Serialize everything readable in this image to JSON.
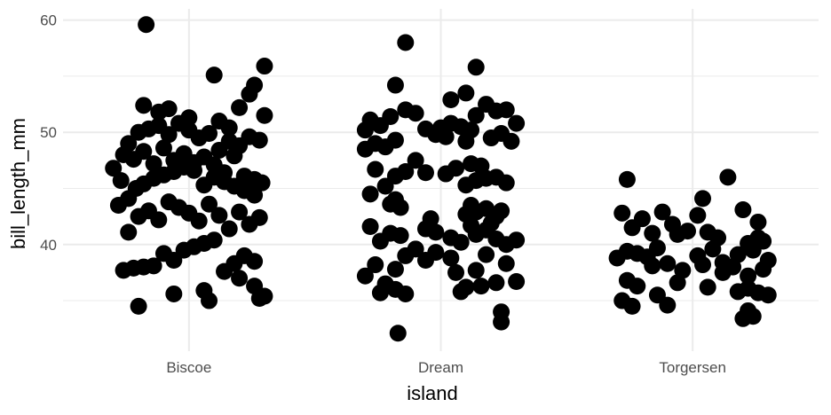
{
  "chart_data": {
    "type": "scatter",
    "title": "",
    "xlabel": "island",
    "ylabel": "bill_length_mm",
    "categories": [
      "Biscoe",
      "Dream",
      "Torgersen"
    ],
    "ylim": [
      30.5,
      61
    ],
    "yticks": [
      40,
      50,
      60
    ],
    "grid": true,
    "legend": "none",
    "point_color": "#000000",
    "grid_color": "#ebebeb",
    "series": [
      {
        "category": "Biscoe",
        "points": [
          [
            -0.3,
            46.8
          ],
          [
            -0.27,
            45.7
          ],
          [
            -0.24,
            49.0
          ],
          [
            -0.2,
            50.0
          ],
          [
            -0.16,
            50.3
          ],
          [
            -0.12,
            50.6
          ],
          [
            -0.08,
            49.8
          ],
          [
            -0.04,
            50.8
          ],
          [
            0.0,
            50.2
          ],
          [
            0.04,
            49.5
          ],
          [
            0.08,
            49.9
          ],
          [
            0.12,
            48.4
          ],
          [
            0.16,
            49.2
          ],
          [
            0.2,
            48.8
          ],
          [
            0.24,
            49.6
          ],
          [
            0.28,
            49.3
          ],
          [
            -0.28,
            43.5
          ],
          [
            -0.24,
            44.1
          ],
          [
            -0.21,
            45.0
          ],
          [
            -0.18,
            45.4
          ],
          [
            -0.14,
            45.9
          ],
          [
            -0.1,
            46.2
          ],
          [
            -0.06,
            46.5
          ],
          [
            -0.02,
            46.9
          ],
          [
            0.02,
            47.3
          ],
          [
            0.06,
            47.8
          ],
          [
            0.1,
            46.0
          ],
          [
            0.14,
            45.6
          ],
          [
            0.18,
            45.2
          ],
          [
            0.22,
            44.8
          ],
          [
            0.26,
            44.4
          ],
          [
            0.29,
            45.5
          ],
          [
            -0.26,
            48.0
          ],
          [
            -0.22,
            47.6
          ],
          [
            -0.18,
            48.3
          ],
          [
            -0.14,
            47.2
          ],
          [
            -0.1,
            48.6
          ],
          [
            -0.06,
            47.5
          ],
          [
            -0.02,
            48.1
          ],
          [
            0.02,
            46.6
          ],
          [
            0.06,
            45.3
          ],
          [
            0.1,
            47.1
          ],
          [
            0.14,
            46.4
          ],
          [
            0.18,
            47.9
          ],
          [
            0.22,
            46.1
          ],
          [
            0.26,
            45.8
          ],
          [
            -0.24,
            41.1
          ],
          [
            -0.2,
            42.5
          ],
          [
            -0.16,
            43.0
          ],
          [
            -0.12,
            42.2
          ],
          [
            -0.08,
            43.8
          ],
          [
            -0.04,
            43.3
          ],
          [
            0.0,
            42.8
          ],
          [
            0.04,
            42.1
          ],
          [
            0.08,
            43.6
          ],
          [
            0.12,
            42.6
          ],
          [
            0.16,
            41.4
          ],
          [
            0.2,
            42.9
          ],
          [
            0.24,
            41.8
          ],
          [
            0.28,
            42.4
          ],
          [
            -0.26,
            37.7
          ],
          [
            -0.22,
            37.9
          ],
          [
            -0.18,
            38.0
          ],
          [
            -0.14,
            38.1
          ],
          [
            -0.1,
            39.2
          ],
          [
            -0.06,
            38.6
          ],
          [
            -0.02,
            39.5
          ],
          [
            0.02,
            39.8
          ],
          [
            0.06,
            40.1
          ],
          [
            0.1,
            40.4
          ],
          [
            0.14,
            37.6
          ],
          [
            0.18,
            38.3
          ],
          [
            0.22,
            39.0
          ],
          [
            0.26,
            38.5
          ],
          [
            -0.2,
            34.5
          ],
          [
            -0.06,
            35.6
          ],
          [
            0.06,
            35.9
          ],
          [
            0.08,
            35.0
          ],
          [
            0.26,
            36.3
          ],
          [
            0.28,
            35.2
          ],
          [
            0.3,
            35.4
          ],
          [
            0.2,
            37.0
          ],
          [
            -0.18,
            52.4
          ],
          [
            -0.12,
            51.8
          ],
          [
            -0.08,
            52.1
          ],
          [
            0.0,
            51.3
          ],
          [
            0.12,
            51.0
          ],
          [
            0.2,
            52.2
          ],
          [
            0.24,
            53.4
          ],
          [
            0.26,
            54.2
          ],
          [
            0.3,
            55.9
          ],
          [
            0.1,
            55.1
          ],
          [
            0.3,
            51.5
          ],
          [
            0.16,
            50.4
          ],
          [
            -0.17,
            59.6
          ]
        ]
      },
      {
        "category": "Dream",
        "points": [
          [
            -0.3,
            50.2
          ],
          [
            -0.28,
            51.1
          ],
          [
            -0.24,
            50.6
          ],
          [
            -0.2,
            51.4
          ],
          [
            -0.14,
            52.0
          ],
          [
            -0.1,
            51.7
          ],
          [
            -0.06,
            50.3
          ],
          [
            0.0,
            50.4
          ],
          [
            0.04,
            50.8
          ],
          [
            0.08,
            50.5
          ],
          [
            0.14,
            51.5
          ],
          [
            0.18,
            52.5
          ],
          [
            0.22,
            51.9
          ],
          [
            0.26,
            52.0
          ],
          [
            0.3,
            50.8
          ],
          [
            -0.3,
            48.5
          ],
          [
            -0.26,
            49.0
          ],
          [
            -0.22,
            48.7
          ],
          [
            -0.18,
            49.3
          ],
          [
            -0.02,
            49.8
          ],
          [
            0.02,
            49.6
          ],
          [
            0.1,
            49.2
          ],
          [
            0.2,
            49.5
          ],
          [
            0.24,
            49.9
          ],
          [
            0.28,
            49.2
          ],
          [
            0.12,
            50.2
          ],
          [
            -0.26,
            46.7
          ],
          [
            -0.18,
            46.1
          ],
          [
            -0.14,
            46.5
          ],
          [
            -0.06,
            46.4
          ],
          [
            0.02,
            46.3
          ],
          [
            0.06,
            46.8
          ],
          [
            0.12,
            47.2
          ],
          [
            0.14,
            45.7
          ],
          [
            0.18,
            45.9
          ],
          [
            0.22,
            46.0
          ],
          [
            0.26,
            45.5
          ],
          [
            -0.1,
            47.5
          ],
          [
            0.16,
            47.0
          ],
          [
            0.1,
            45.3
          ],
          [
            -0.28,
            44.5
          ],
          [
            -0.22,
            45.2
          ],
          [
            -0.18,
            44.0
          ],
          [
            -0.2,
            43.6
          ],
          [
            -0.16,
            43.3
          ],
          [
            0.14,
            42.9
          ],
          [
            0.18,
            43.2
          ],
          [
            0.22,
            42.5
          ],
          [
            0.1,
            42.7
          ],
          [
            0.24,
            43.0
          ],
          [
            0.12,
            43.5
          ],
          [
            0.2,
            41.9
          ],
          [
            -0.28,
            41.6
          ],
          [
            -0.24,
            40.3
          ],
          [
            -0.2,
            41.0
          ],
          [
            -0.16,
            40.8
          ],
          [
            -0.06,
            41.4
          ],
          [
            -0.02,
            41.1
          ],
          [
            0.04,
            40.6
          ],
          [
            0.08,
            40.2
          ],
          [
            0.14,
            40.9
          ],
          [
            0.18,
            41.3
          ],
          [
            0.22,
            40.5
          ],
          [
            0.26,
            40.0
          ],
          [
            0.3,
            40.4
          ],
          [
            0.12,
            41.7
          ],
          [
            -0.04,
            42.3
          ],
          [
            -0.3,
            37.2
          ],
          [
            -0.26,
            38.2
          ],
          [
            -0.22,
            36.5
          ],
          [
            -0.18,
            37.8
          ],
          [
            -0.14,
            39.0
          ],
          [
            -0.1,
            39.6
          ],
          [
            -0.06,
            38.6
          ],
          [
            -0.02,
            39.3
          ],
          [
            0.04,
            38.8
          ],
          [
            0.1,
            36.2
          ],
          [
            0.14,
            37.7
          ],
          [
            0.18,
            39.1
          ],
          [
            0.22,
            36.6
          ],
          [
            0.26,
            38.3
          ],
          [
            0.3,
            36.7
          ],
          [
            0.08,
            35.8
          ],
          [
            0.06,
            37.5
          ],
          [
            -0.14,
            35.6
          ],
          [
            -0.18,
            36.0
          ],
          [
            0.16,
            36.3
          ],
          [
            0.24,
            34.0
          ],
          [
            0.24,
            33.1
          ],
          [
            -0.24,
            35.7
          ],
          [
            -0.18,
            54.2
          ],
          [
            -0.14,
            58.0
          ],
          [
            0.04,
            52.9
          ],
          [
            0.1,
            53.5
          ],
          [
            0.14,
            55.8
          ],
          [
            -0.17,
            32.1
          ]
        ]
      },
      {
        "category": "Torgersen",
        "points": [
          [
            -0.26,
            45.8
          ],
          [
            0.04,
            44.1
          ],
          [
            0.14,
            46.0
          ],
          [
            -0.06,
            40.9
          ],
          [
            0.02,
            42.6
          ],
          [
            -0.3,
            38.8
          ],
          [
            -0.28,
            42.8
          ],
          [
            -0.24,
            41.5
          ],
          [
            -0.2,
            42.3
          ],
          [
            -0.16,
            41.0
          ],
          [
            -0.12,
            42.9
          ],
          [
            -0.08,
            41.8
          ],
          [
            -0.02,
            41.2
          ],
          [
            0.06,
            41.1
          ],
          [
            0.1,
            40.6
          ],
          [
            0.18,
            39.1
          ],
          [
            0.22,
            40.1
          ],
          [
            0.26,
            40.6
          ],
          [
            0.3,
            38.6
          ],
          [
            0.28,
            40.3
          ],
          [
            0.2,
            43.1
          ],
          [
            0.26,
            42.0
          ],
          [
            -0.26,
            39.4
          ],
          [
            -0.22,
            39.2
          ],
          [
            -0.18,
            38.9
          ],
          [
            -0.14,
            39.7
          ],
          [
            -0.1,
            38.3
          ],
          [
            -0.04,
            37.7
          ],
          [
            0.04,
            38.2
          ],
          [
            0.08,
            39.6
          ],
          [
            0.12,
            38.4
          ],
          [
            0.16,
            38.0
          ],
          [
            0.22,
            37.2
          ],
          [
            0.24,
            39.5
          ],
          [
            0.28,
            37.8
          ],
          [
            0.02,
            39.0
          ],
          [
            -0.16,
            38.1
          ],
          [
            -0.26,
            36.8
          ],
          [
            -0.22,
            36.3
          ],
          [
            -0.14,
            35.5
          ],
          [
            -0.06,
            36.6
          ],
          [
            0.06,
            36.2
          ],
          [
            0.18,
            35.8
          ],
          [
            0.22,
            36.1
          ],
          [
            0.26,
            35.7
          ],
          [
            0.3,
            35.5
          ],
          [
            0.12,
            37.5
          ],
          [
            -0.28,
            35.0
          ],
          [
            -0.24,
            34.5
          ],
          [
            -0.1,
            34.6
          ],
          [
            0.22,
            34.1
          ],
          [
            0.24,
            33.6
          ],
          [
            0.2,
            33.4
          ]
        ]
      }
    ]
  }
}
